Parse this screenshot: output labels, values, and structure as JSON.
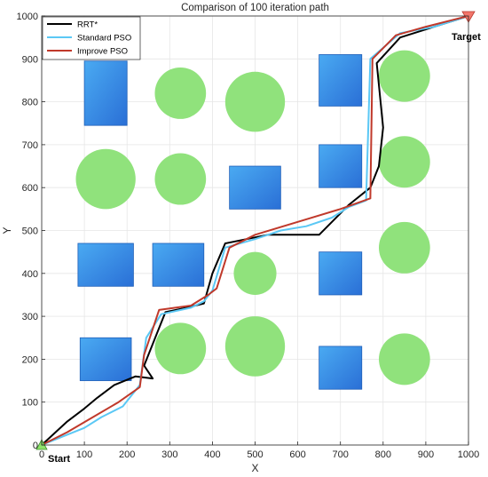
{
  "chart_data": {
    "type": "line",
    "title": "Comparison of 100 iteration path",
    "xlabel": "X",
    "ylabel": "Y",
    "xlim": [
      0,
      1000
    ],
    "ylim": [
      0,
      1000
    ],
    "xticks": [
      0,
      100,
      200,
      300,
      400,
      500,
      600,
      700,
      800,
      900,
      1000
    ],
    "yticks": [
      0,
      100,
      200,
      300,
      400,
      500,
      600,
      700,
      800,
      900,
      1000
    ],
    "grid": true,
    "legend_position": "top-left",
    "series": [
      {
        "name": "RRT*",
        "color": "#000000",
        "x": [
          0,
          60,
          100,
          130,
          170,
          220,
          260,
          240,
          290,
          340,
          380,
          400,
          430,
          480,
          530,
          580,
          650,
          720,
          770,
          790,
          800,
          790,
          785,
          840,
          920,
          1000
        ],
        "y": [
          0,
          55,
          85,
          110,
          140,
          160,
          155,
          185,
          310,
          320,
          330,
          400,
          470,
          480,
          490,
          490,
          490,
          560,
          600,
          650,
          740,
          840,
          890,
          950,
          975,
          1000
        ]
      },
      {
        "name": "Standard PSO",
        "color": "#5bc8f5",
        "x": [
          0,
          50,
          100,
          140,
          190,
          230,
          245,
          280,
          350,
          380,
          400,
          430,
          500,
          560,
          620,
          680,
          720,
          760,
          770,
          840,
          920,
          1000
        ],
        "y": [
          0,
          20,
          40,
          65,
          90,
          140,
          250,
          305,
          320,
          335,
          360,
          460,
          480,
          500,
          510,
          530,
          555,
          570,
          900,
          960,
          975,
          1000
        ]
      },
      {
        "name": "Improve PSO",
        "color": "#c0392b",
        "x": [
          0,
          60,
          120,
          180,
          230,
          240,
          275,
          350,
          390,
          410,
          440,
          500,
          600,
          700,
          770,
          775,
          830,
          900,
          1000
        ],
        "y": [
          0,
          30,
          65,
          100,
          135,
          210,
          315,
          325,
          350,
          365,
          460,
          490,
          520,
          550,
          575,
          900,
          955,
          975,
          1000
        ]
      }
    ],
    "obstacles": {
      "rectangles": [
        {
          "x": 100,
          "y": 745,
          "w": 100,
          "h": 150
        },
        {
          "x": 650,
          "y": 790,
          "w": 100,
          "h": 120
        },
        {
          "x": 440,
          "y": 550,
          "w": 120,
          "h": 100
        },
        {
          "x": 650,
          "y": 600,
          "w": 100,
          "h": 100
        },
        {
          "x": 85,
          "y": 370,
          "w": 130,
          "h": 100
        },
        {
          "x": 260,
          "y": 370,
          "w": 120,
          "h": 100
        },
        {
          "x": 650,
          "y": 350,
          "w": 100,
          "h": 100
        },
        {
          "x": 90,
          "y": 150,
          "w": 120,
          "h": 100
        },
        {
          "x": 650,
          "y": 130,
          "w": 100,
          "h": 100
        }
      ],
      "circles": [
        {
          "x": 325,
          "y": 820,
          "r": 60
        },
        {
          "x": 500,
          "y": 800,
          "r": 70
        },
        {
          "x": 850,
          "y": 860,
          "r": 60
        },
        {
          "x": 150,
          "y": 620,
          "r": 70
        },
        {
          "x": 325,
          "y": 620,
          "r": 60
        },
        {
          "x": 850,
          "y": 660,
          "r": 60
        },
        {
          "x": 500,
          "y": 400,
          "r": 50
        },
        {
          "x": 850,
          "y": 460,
          "r": 60
        },
        {
          "x": 325,
          "y": 225,
          "r": 60
        },
        {
          "x": 500,
          "y": 230,
          "r": 70
        },
        {
          "x": 850,
          "y": 200,
          "r": 60
        }
      ]
    },
    "start": {
      "label": "Start",
      "x": 0,
      "y": 0
    },
    "target": {
      "label": "Target",
      "x": 1000,
      "y": 1000
    }
  },
  "colors": {
    "rect_fill_light": "#4aaaf2",
    "rect_fill_dark": "#2a6fd6",
    "rect_stroke": "#1f5fb8",
    "circle_fill": "#90e27c",
    "start_marker": "#8fe36b",
    "target_marker": "#f2766b",
    "grid": "#e6e6e6",
    "axis": "#262626"
  }
}
